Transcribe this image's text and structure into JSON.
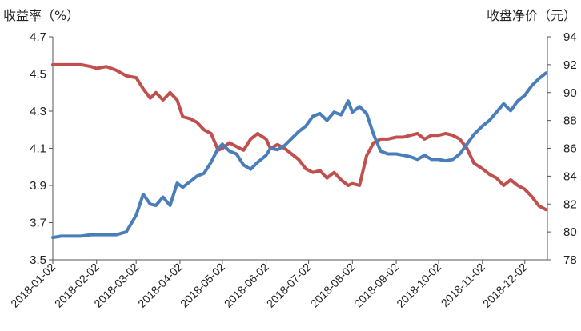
{
  "chart_data": {
    "type": "line",
    "title": "",
    "ylabel_left": "收益率（%）",
    "ylabel_right": "收盘净价（元）",
    "x_ticks": [
      "2018-01-02",
      "2018-02-02",
      "2018-03-02",
      "2018-04-02",
      "2018-05-02",
      "2018-06-02",
      "2018-07-02",
      "2018-08-02",
      "2018-09-02",
      "2018-10-02",
      "2018-11-02",
      "2018-12-02"
    ],
    "y_left": {
      "ticks": [
        "3.5",
        "3.7",
        "3.9",
        "4.1",
        "4.3",
        "4.5",
        "4.7"
      ],
      "min": 3.5,
      "max": 4.7
    },
    "y_right": {
      "ticks": [
        "78",
        "80",
        "82",
        "84",
        "86",
        "88",
        "90",
        "92",
        "94"
      ],
      "min": 78,
      "max": 94
    },
    "grid": false,
    "series": [
      {
        "key": "yield",
        "axis": "left",
        "color": "#c0504d",
        "points": [
          [
            "2018-01-02",
            4.55
          ],
          [
            "2018-01-08",
            4.55
          ],
          [
            "2018-01-15",
            4.55
          ],
          [
            "2018-01-22",
            4.55
          ],
          [
            "2018-01-29",
            4.54
          ],
          [
            "2018-02-02",
            4.53
          ],
          [
            "2018-02-09",
            4.54
          ],
          [
            "2018-02-16",
            4.52
          ],
          [
            "2018-02-23",
            4.49
          ],
          [
            "2018-03-02",
            4.48
          ],
          [
            "2018-03-07",
            4.42
          ],
          [
            "2018-03-12",
            4.37
          ],
          [
            "2018-03-16",
            4.4
          ],
          [
            "2018-03-21",
            4.36
          ],
          [
            "2018-03-26",
            4.4
          ],
          [
            "2018-03-31",
            4.36
          ],
          [
            "2018-04-04",
            4.27
          ],
          [
            "2018-04-09",
            4.26
          ],
          [
            "2018-04-14",
            4.24
          ],
          [
            "2018-04-19",
            4.2
          ],
          [
            "2018-04-24",
            4.18
          ],
          [
            "2018-04-29",
            4.09
          ],
          [
            "2018-05-02",
            4.1
          ],
          [
            "2018-05-07",
            4.13
          ],
          [
            "2018-05-12",
            4.11
          ],
          [
            "2018-05-17",
            4.09
          ],
          [
            "2018-05-22",
            4.15
          ],
          [
            "2018-05-27",
            4.18
          ],
          [
            "2018-06-02",
            4.15
          ],
          [
            "2018-06-05",
            4.1
          ],
          [
            "2018-06-10",
            4.12
          ],
          [
            "2018-06-15",
            4.1
          ],
          [
            "2018-06-20",
            4.07
          ],
          [
            "2018-06-25",
            4.04
          ],
          [
            "2018-06-30",
            3.99
          ],
          [
            "2018-07-05",
            3.97
          ],
          [
            "2018-07-10",
            3.98
          ],
          [
            "2018-07-15",
            3.94
          ],
          [
            "2018-07-20",
            3.97
          ],
          [
            "2018-07-25",
            3.93
          ],
          [
            "2018-07-30",
            3.9
          ],
          [
            "2018-08-02",
            3.91
          ],
          [
            "2018-08-07",
            3.9
          ],
          [
            "2018-08-12",
            4.06
          ],
          [
            "2018-08-17",
            4.13
          ],
          [
            "2018-08-22",
            4.15
          ],
          [
            "2018-08-27",
            4.15
          ],
          [
            "2018-09-02",
            4.16
          ],
          [
            "2018-09-07",
            4.16
          ],
          [
            "2018-09-12",
            4.17
          ],
          [
            "2018-09-17",
            4.18
          ],
          [
            "2018-09-22",
            4.15
          ],
          [
            "2018-09-27",
            4.17
          ],
          [
            "2018-10-02",
            4.17
          ],
          [
            "2018-10-07",
            4.18
          ],
          [
            "2018-10-12",
            4.17
          ],
          [
            "2018-10-17",
            4.15
          ],
          [
            "2018-10-22",
            4.1
          ],
          [
            "2018-10-27",
            4.02
          ],
          [
            "2018-11-02",
            3.99
          ],
          [
            "2018-11-07",
            3.96
          ],
          [
            "2018-11-12",
            3.94
          ],
          [
            "2018-11-17",
            3.9
          ],
          [
            "2018-11-22",
            3.93
          ],
          [
            "2018-11-27",
            3.9
          ],
          [
            "2018-12-02",
            3.88
          ],
          [
            "2018-12-07",
            3.84
          ],
          [
            "2018-12-12",
            3.79
          ],
          [
            "2018-12-17",
            3.77
          ]
        ]
      },
      {
        "key": "price",
        "axis": "right",
        "color": "#4a7ebb",
        "points": [
          [
            "2018-01-02",
            79.6
          ],
          [
            "2018-01-08",
            79.7
          ],
          [
            "2018-01-15",
            79.7
          ],
          [
            "2018-01-22",
            79.7
          ],
          [
            "2018-01-29",
            79.8
          ],
          [
            "2018-02-02",
            79.8
          ],
          [
            "2018-02-09",
            79.8
          ],
          [
            "2018-02-16",
            79.8
          ],
          [
            "2018-02-23",
            80.0
          ],
          [
            "2018-03-02",
            81.2
          ],
          [
            "2018-03-07",
            82.7
          ],
          [
            "2018-03-12",
            82.0
          ],
          [
            "2018-03-16",
            81.9
          ],
          [
            "2018-03-21",
            82.5
          ],
          [
            "2018-03-26",
            81.9
          ],
          [
            "2018-03-31",
            83.5
          ],
          [
            "2018-04-04",
            83.2
          ],
          [
            "2018-04-09",
            83.6
          ],
          [
            "2018-04-14",
            84.0
          ],
          [
            "2018-04-19",
            84.2
          ],
          [
            "2018-04-24",
            85.0
          ],
          [
            "2018-04-29",
            86.0
          ],
          [
            "2018-05-02",
            86.3
          ],
          [
            "2018-05-07",
            85.8
          ],
          [
            "2018-05-12",
            85.6
          ],
          [
            "2018-05-17",
            84.8
          ],
          [
            "2018-05-22",
            84.5
          ],
          [
            "2018-05-27",
            85.0
          ],
          [
            "2018-06-02",
            85.5
          ],
          [
            "2018-06-05",
            86.0
          ],
          [
            "2018-06-10",
            85.9
          ],
          [
            "2018-06-15",
            86.2
          ],
          [
            "2018-06-20",
            86.7
          ],
          [
            "2018-06-25",
            87.2
          ],
          [
            "2018-06-30",
            87.6
          ],
          [
            "2018-07-05",
            88.3
          ],
          [
            "2018-07-10",
            88.5
          ],
          [
            "2018-07-15",
            88.0
          ],
          [
            "2018-07-20",
            88.6
          ],
          [
            "2018-07-25",
            88.4
          ],
          [
            "2018-07-30",
            89.4
          ],
          [
            "2018-08-02",
            88.6
          ],
          [
            "2018-08-07",
            89.0
          ],
          [
            "2018-08-12",
            88.5
          ],
          [
            "2018-08-17",
            87.0
          ],
          [
            "2018-08-22",
            85.8
          ],
          [
            "2018-08-27",
            85.6
          ],
          [
            "2018-09-02",
            85.6
          ],
          [
            "2018-09-07",
            85.5
          ],
          [
            "2018-09-12",
            85.4
          ],
          [
            "2018-09-17",
            85.2
          ],
          [
            "2018-09-22",
            85.5
          ],
          [
            "2018-09-27",
            85.2
          ],
          [
            "2018-10-02",
            85.2
          ],
          [
            "2018-10-07",
            85.1
          ],
          [
            "2018-10-12",
            85.2
          ],
          [
            "2018-10-17",
            85.6
          ],
          [
            "2018-10-22",
            86.3
          ],
          [
            "2018-10-27",
            87.0
          ],
          [
            "2018-11-02",
            87.6
          ],
          [
            "2018-11-07",
            88.0
          ],
          [
            "2018-11-12",
            88.6
          ],
          [
            "2018-11-17",
            89.2
          ],
          [
            "2018-11-22",
            88.7
          ],
          [
            "2018-11-27",
            89.4
          ],
          [
            "2018-12-02",
            89.8
          ],
          [
            "2018-12-07",
            90.5
          ],
          [
            "2018-12-12",
            91.0
          ],
          [
            "2018-12-17",
            91.4
          ]
        ]
      }
    ]
  }
}
